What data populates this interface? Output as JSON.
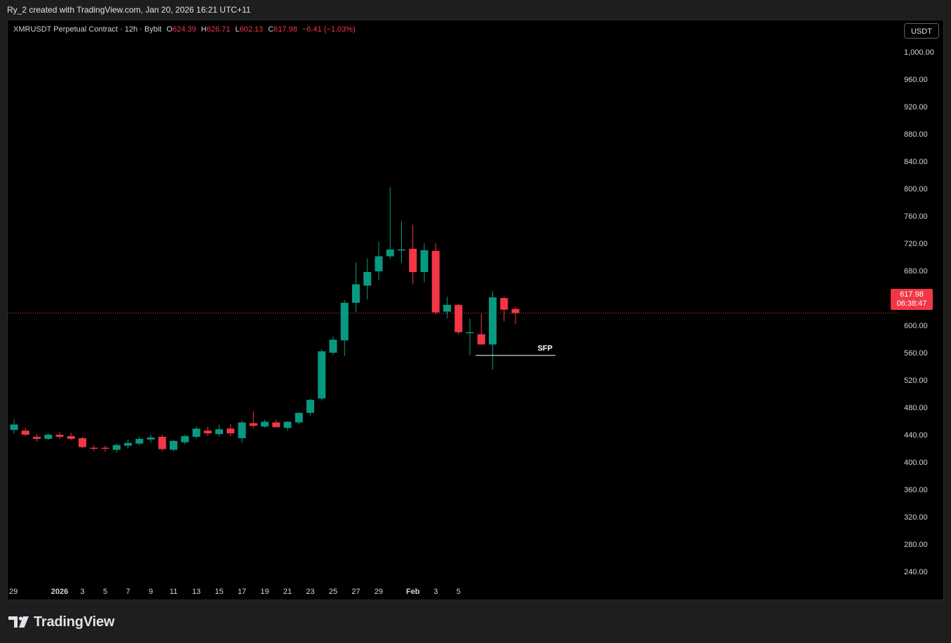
{
  "caption": "Ry_2 created with TradingView.com, Jan 20, 2026 16:21 UTC+11",
  "legend": {
    "symbol": "XMRUSDT Perpetual Contract · 12h · Bybit",
    "open_label": "O",
    "open": "624.39",
    "high_label": "H",
    "high": "626.71",
    "low_label": "L",
    "low": "602.13",
    "close_label": "C",
    "close": "617.98",
    "change": "−6.41 (−1.03%)"
  },
  "currency_button": "USDT",
  "last_price": {
    "price": "617.98",
    "countdown": "06:38:47",
    "value": 617.98
  },
  "logo_text": "TradingView",
  "colors": {
    "up": "#089981",
    "down": "#f23645",
    "background": "#000000",
    "grid": "none"
  },
  "chart_data": {
    "type": "candlestick",
    "ylim": [
      220,
      1020
    ],
    "y_ticks": [
      "1,000.00",
      "960.00",
      "920.00",
      "880.00",
      "840.00",
      "800.00",
      "760.00",
      "720.00",
      "680.00",
      "640.00",
      "600.00",
      "560.00",
      "520.00",
      "480.00",
      "440.00",
      "400.00",
      "360.00",
      "320.00",
      "280.00",
      "240.00"
    ],
    "y_tick_values": [
      1000,
      960,
      920,
      880,
      840,
      800,
      760,
      720,
      680,
      640,
      600,
      560,
      520,
      480,
      440,
      400,
      360,
      320,
      280,
      240
    ],
    "x_tick_labels": [
      "29",
      "2026",
      "3",
      "5",
      "7",
      "9",
      "11",
      "13",
      "15",
      "17",
      "19",
      "21",
      "23",
      "25",
      "27",
      "29",
      "Feb",
      "3",
      "5"
    ],
    "x_tick_positions": [
      0,
      4,
      6,
      8,
      10,
      12,
      14,
      16,
      18,
      20,
      22,
      24,
      26,
      28,
      30,
      32,
      35,
      37,
      39
    ],
    "bar_interval": "12h",
    "candles": [
      {
        "o": 447,
        "h": 463,
        "l": 442,
        "c": 455
      },
      {
        "o": 446,
        "h": 450,
        "l": 438,
        "c": 440
      },
      {
        "o": 437,
        "h": 441,
        "l": 430,
        "c": 434
      },
      {
        "o": 434,
        "h": 442,
        "l": 432,
        "c": 440
      },
      {
        "o": 440,
        "h": 444,
        "l": 434,
        "c": 437
      },
      {
        "o": 438,
        "h": 443,
        "l": 432,
        "c": 434
      },
      {
        "o": 435,
        "h": 437,
        "l": 420,
        "c": 422
      },
      {
        "o": 421,
        "h": 425,
        "l": 416,
        "c": 420
      },
      {
        "o": 421,
        "h": 424,
        "l": 415,
        "c": 420
      },
      {
        "o": 418,
        "h": 427,
        "l": 414,
        "c": 425
      },
      {
        "o": 424,
        "h": 433,
        "l": 420,
        "c": 428
      },
      {
        "o": 427,
        "h": 437,
        "l": 424,
        "c": 434
      },
      {
        "o": 433,
        "h": 440,
        "l": 428,
        "c": 436
      },
      {
        "o": 437,
        "h": 440,
        "l": 416,
        "c": 419
      },
      {
        "o": 418,
        "h": 432,
        "l": 416,
        "c": 431
      },
      {
        "o": 429,
        "h": 440,
        "l": 426,
        "c": 438
      },
      {
        "o": 437,
        "h": 452,
        "l": 434,
        "c": 449
      },
      {
        "o": 446,
        "h": 452,
        "l": 438,
        "c": 442
      },
      {
        "o": 441,
        "h": 455,
        "l": 437,
        "c": 448
      },
      {
        "o": 449,
        "h": 456,
        "l": 438,
        "c": 442
      },
      {
        "o": 435,
        "h": 461,
        "l": 428,
        "c": 458
      },
      {
        "o": 457,
        "h": 474,
        "l": 449,
        "c": 453
      },
      {
        "o": 452,
        "h": 462,
        "l": 450,
        "c": 459
      },
      {
        "o": 458,
        "h": 462,
        "l": 452,
        "c": 451
      },
      {
        "o": 450,
        "h": 460,
        "l": 446,
        "c": 459
      },
      {
        "o": 458,
        "h": 473,
        "l": 455,
        "c": 472
      },
      {
        "o": 472,
        "h": 493,
        "l": 468,
        "c": 491
      },
      {
        "o": 493,
        "h": 565,
        "l": 490,
        "c": 562
      },
      {
        "o": 560,
        "h": 584,
        "l": 557,
        "c": 579
      },
      {
        "o": 578,
        "h": 637,
        "l": 555,
        "c": 633
      },
      {
        "o": 633,
        "h": 692,
        "l": 620,
        "c": 660
      },
      {
        "o": 658,
        "h": 698,
        "l": 638,
        "c": 678
      },
      {
        "o": 679,
        "h": 722,
        "l": 666,
        "c": 701
      },
      {
        "o": 701,
        "h": 802,
        "l": 697,
        "c": 711
      },
      {
        "o": 711,
        "h": 753,
        "l": 692,
        "c": 711
      },
      {
        "o": 712,
        "h": 747,
        "l": 660,
        "c": 678
      },
      {
        "o": 678,
        "h": 720,
        "l": 663,
        "c": 710
      },
      {
        "o": 709,
        "h": 720,
        "l": 616,
        "c": 619
      },
      {
        "o": 620,
        "h": 642,
        "l": 610,
        "c": 630
      },
      {
        "o": 630,
        "h": 632,
        "l": 587,
        "c": 590
      },
      {
        "o": 590,
        "h": 610,
        "l": 556,
        "c": 590
      },
      {
        "o": 587,
        "h": 617,
        "l": 572,
        "c": 572
      },
      {
        "o": 572,
        "h": 650,
        "l": 535,
        "c": 641
      },
      {
        "o": 640,
        "h": 642,
        "l": 606,
        "c": 623
      },
      {
        "o": 624,
        "h": 627,
        "l": 602,
        "c": 618
      }
    ],
    "annotations": [
      {
        "type": "hline",
        "value": 556,
        "x_start": 40.5,
        "x_end": 47.5,
        "label": "SFP"
      }
    ],
    "current_price_line": 617.98
  }
}
